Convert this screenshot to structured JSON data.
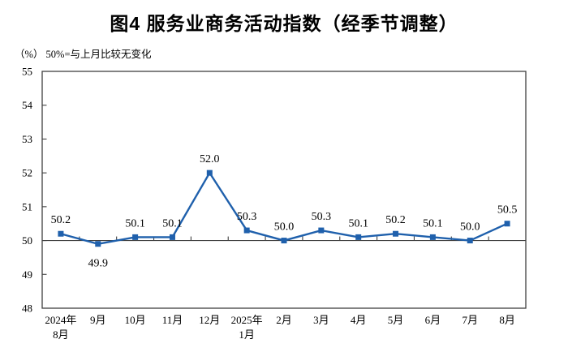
{
  "title": "图4 服务业商务活动指数（经季节调整）",
  "subtitle": "（%） 50%=与上月比较无变化",
  "chart_data": {
    "type": "line",
    "title": "图4 服务业商务活动指数（经季节调整）",
    "unit_note": "（%） 50%=与上月比较无变化",
    "categories": [
      "2024年\n8月",
      "9月",
      "10月",
      "11月",
      "12月",
      "2025年\n1月",
      "2月",
      "3月",
      "4月",
      "5月",
      "6月",
      "7月",
      "8月"
    ],
    "series": [
      {
        "name": "服务业商务活动指数",
        "values": [
          50.2,
          49.9,
          50.1,
          50.1,
          52.0,
          50.3,
          50.0,
          50.3,
          50.1,
          50.2,
          50.1,
          50.0,
          50.5
        ]
      }
    ],
    "ylim": [
      48,
      55
    ],
    "ytick_step": 1,
    "reference_line": 50,
    "grid": false,
    "legend": "none",
    "line_color": "#1F60AC",
    "axis_color": "#404040",
    "text_color": "#000000",
    "marker": "square"
  }
}
